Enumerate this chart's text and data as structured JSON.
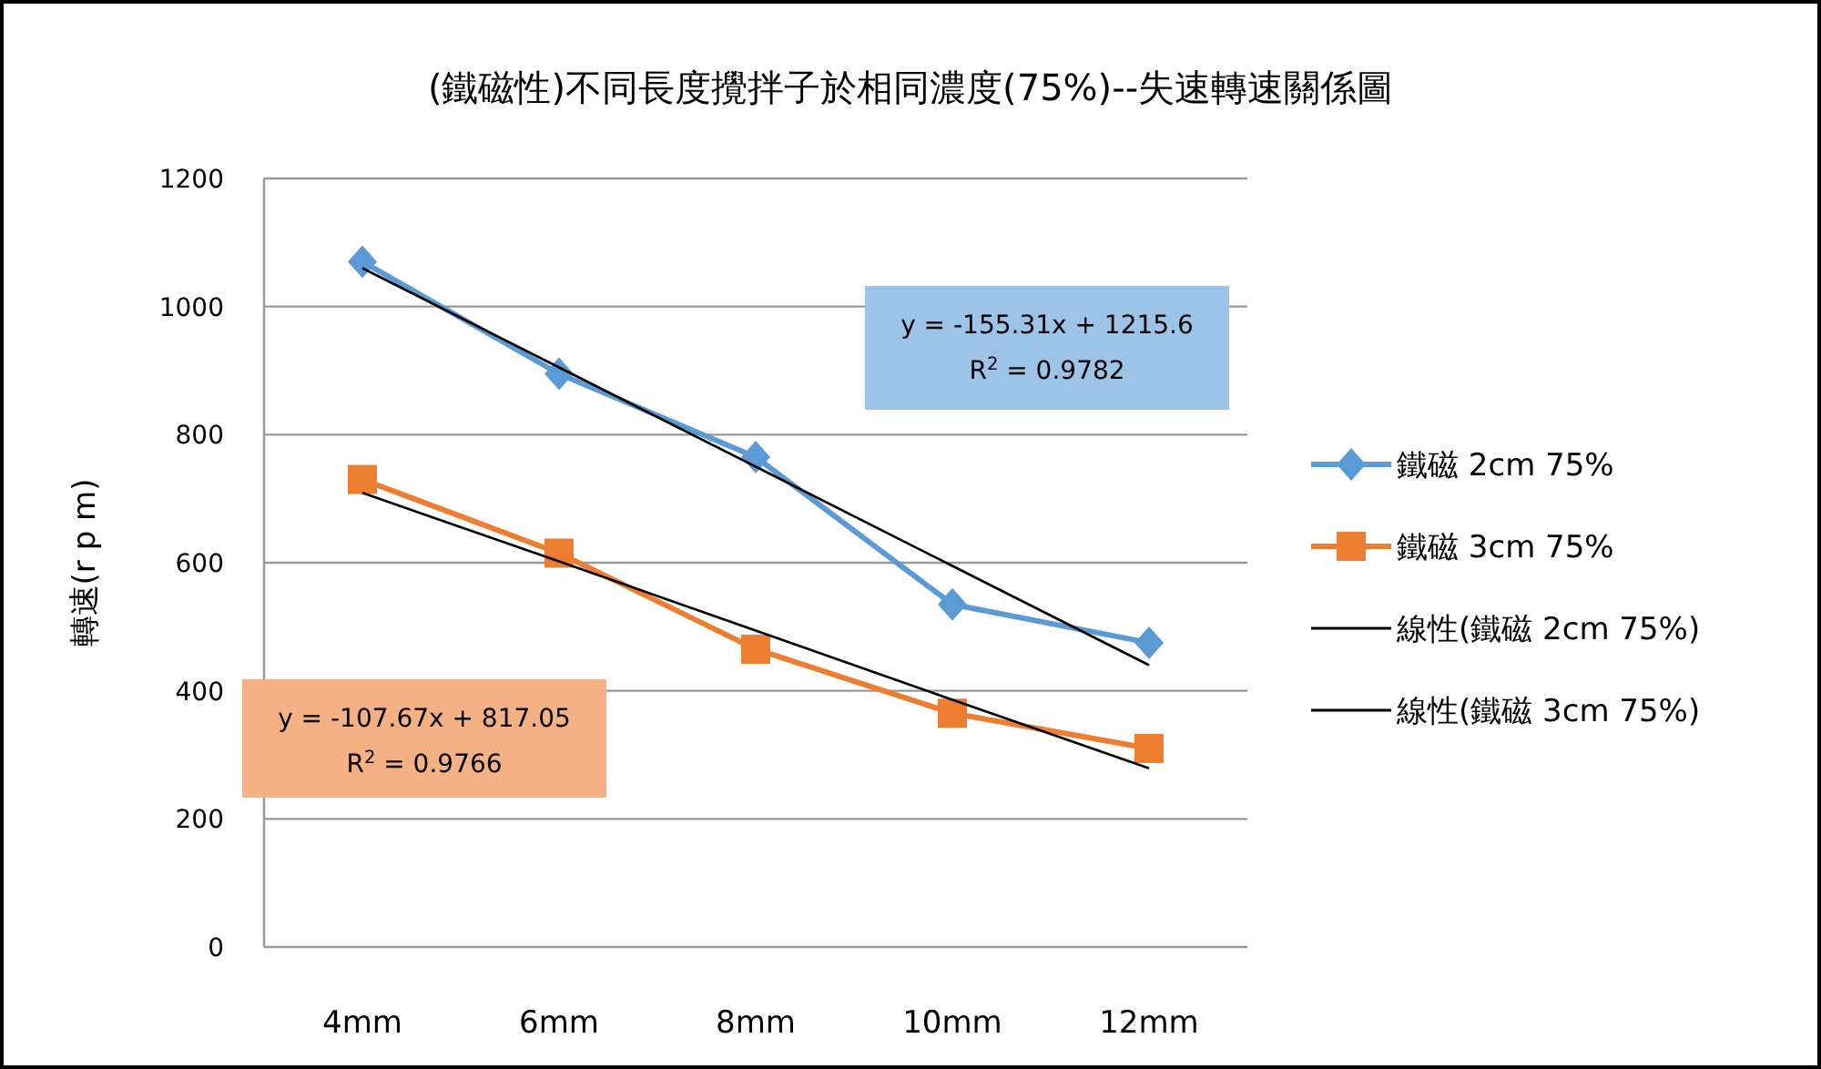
{
  "chart_data": {
    "type": "line",
    "title": "(鐵磁性)不同長度攪拌子於相同濃度(75%)--失速轉速關係圖",
    "ylabel": "轉速(r p m)",
    "categories": [
      "4mm",
      "6mm",
      "8mm",
      "10mm",
      "12mm"
    ],
    "series": [
      {
        "name": "鐵磁 2cm 75%",
        "color": "#5b9bd5",
        "marker": "diamond",
        "values": [
          1070,
          895,
          765,
          535,
          475
        ]
      },
      {
        "name": "鐵磁 3cm 75%",
        "color": "#ed7d31",
        "marker": "square",
        "values": [
          730,
          615,
          465,
          365,
          310
        ]
      },
      {
        "name": "線性(鐵磁 2cm 75%)",
        "color": "#000000",
        "marker": "none",
        "values": [
          1060,
          905,
          750,
          595,
          440
        ]
      },
      {
        "name": "線性(鐵磁 3cm 75%)",
        "color": "#000000",
        "marker": "none",
        "values": [
          709,
          602,
          494,
          386,
          279
        ]
      }
    ],
    "ylim": [
      0,
      1200
    ],
    "yticks": [
      0,
      200,
      400,
      600,
      800,
      1000,
      1200
    ],
    "grid": "y",
    "legend": "right",
    "line_style": "solid",
    "annotations": [
      "y = -155.31x + 1215.6",
      "R$^{2}$ = 0.9782",
      "y = -107.67x + 817.05",
      "R$^{2}$ = 0.9766"
    ]
  }
}
